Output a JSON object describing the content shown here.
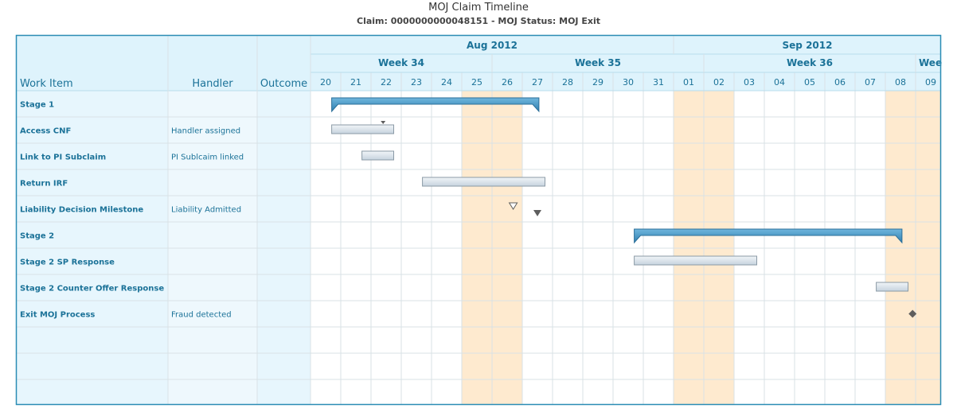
{
  "title": "MOJ Claim Timeline",
  "subtitle": "Claim: 0000000000048151 - MOJ Status: MOJ Exit",
  "columns": {
    "work_item": "Work Item",
    "handler": "Handler",
    "outcome": "Outcome"
  },
  "chart_data": {
    "type": "gantt",
    "months": [
      {
        "label": "Aug 2012",
        "first_day_index": 0,
        "day_count": 12
      },
      {
        "label": "Sep 2012",
        "first_day_index": 12,
        "day_count": 9
      }
    ],
    "weeks": [
      {
        "label": "Week 34",
        "first_day_index": 0,
        "day_count": 6
      },
      {
        "label": "Week 35",
        "first_day_index": 6,
        "day_count": 7
      },
      {
        "label": "Week 36",
        "first_day_index": 13,
        "day_count": 7
      },
      {
        "label": "Wee",
        "first_day_index": 20,
        "day_count": 1
      }
    ],
    "days": [
      "20",
      "21",
      "22",
      "23",
      "24",
      "25",
      "26",
      "27",
      "28",
      "29",
      "30",
      "31",
      "01",
      "02",
      "03",
      "04",
      "05",
      "06",
      "07",
      "08",
      "09"
    ],
    "weekend_day_indices": [
      5,
      6,
      12,
      13,
      19,
      20
    ],
    "rows": [
      {
        "work_item": "Stage 1",
        "handler": "",
        "outcome": "",
        "items": [
          {
            "kind": "summary",
            "start": "2012-08-20",
            "end": "2012-08-27"
          }
        ]
      },
      {
        "work_item": "Access CNF",
        "handler": "Handler assigned",
        "outcome": "",
        "items": [
          {
            "kind": "task",
            "start": "2012-08-20",
            "end": "2012-08-22"
          },
          {
            "kind": "marker-small",
            "date": "2012-08-22"
          }
        ]
      },
      {
        "work_item": "Link to PI Subclaim",
        "handler": "PI Sublcaim linked",
        "outcome": "",
        "items": [
          {
            "kind": "task",
            "start": "2012-08-21",
            "end": "2012-08-22"
          }
        ]
      },
      {
        "work_item": "Return IRF",
        "handler": "",
        "outcome": "",
        "items": [
          {
            "kind": "task",
            "start": "2012-08-23",
            "end": "2012-08-27"
          }
        ]
      },
      {
        "work_item": "Liability Decision Milestone",
        "handler": "Liability Admitted",
        "outcome": "",
        "items": [
          {
            "kind": "milestone-open",
            "date": "2012-08-26"
          },
          {
            "kind": "milestone-filled",
            "date": "2012-08-27"
          }
        ]
      },
      {
        "work_item": "Stage 2",
        "handler": "",
        "outcome": "",
        "items": [
          {
            "kind": "summary",
            "start": "2012-08-30",
            "end": "2012-09-08"
          }
        ]
      },
      {
        "work_item": "Stage 2 SP Response",
        "handler": "",
        "outcome": "",
        "items": [
          {
            "kind": "task",
            "start": "2012-08-30",
            "end": "2012-09-03"
          }
        ]
      },
      {
        "work_item": "Stage 2 Counter Offer Response",
        "handler": "",
        "outcome": "",
        "items": [
          {
            "kind": "task",
            "start": "2012-09-07",
            "end": "2012-09-08"
          }
        ]
      },
      {
        "work_item": "Exit MOJ Process",
        "handler": "Fraud detected",
        "outcome": "",
        "items": [
          {
            "kind": "diamond",
            "date": "2012-09-08"
          }
        ]
      },
      {
        "work_item": "",
        "handler": "",
        "outcome": "",
        "items": []
      },
      {
        "work_item": "",
        "handler": "",
        "outcome": "",
        "items": []
      },
      {
        "work_item": "",
        "handler": "",
        "outcome": "",
        "items": []
      }
    ]
  },
  "colors": {
    "border": "#2a8cb4",
    "header_bg": "#def3fc",
    "left_bg": "#e7f6fd",
    "weekend_bg": "#feeacf",
    "grid": "#d9e2e6",
    "header_text": "#1b7298",
    "summary_bar": "#3f8fbf",
    "task_fill": "#dde6ee",
    "task_border": "#8b9aa6",
    "milestone": "#5e5e5e"
  }
}
